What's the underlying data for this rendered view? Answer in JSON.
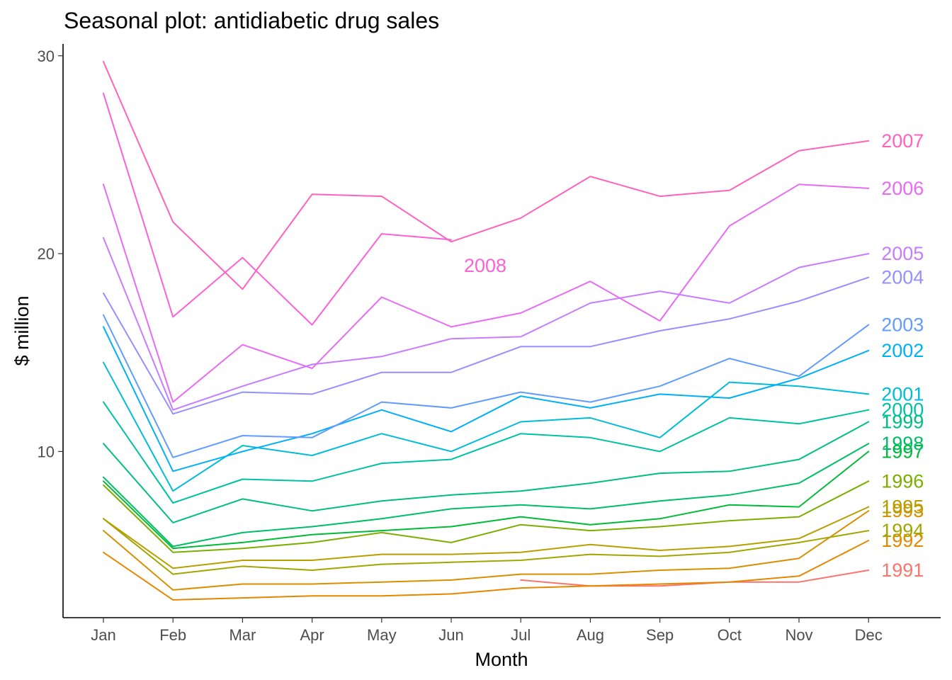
{
  "chart_data": {
    "type": "line",
    "title": "Seasonal plot: antidiabetic drug sales",
    "xlabel": "Month",
    "ylabel": "$ million",
    "categories": [
      "Jan",
      "Feb",
      "Mar",
      "Apr",
      "May",
      "Jun",
      "Jul",
      "Aug",
      "Sep",
      "Oct",
      "Nov",
      "Dec"
    ],
    "ylim": [
      1.6,
      30.6
    ],
    "yticks": [
      10,
      20,
      30
    ],
    "grid": false,
    "legend": "none",
    "series": [
      {
        "name": "1991",
        "color": "#F8766D",
        "values": [
          null,
          null,
          null,
          null,
          null,
          null,
          3.5,
          3.2,
          3.2,
          3.4,
          3.4,
          4.0
        ]
      },
      {
        "name": "1992",
        "color": "#E58700",
        "values": [
          4.9,
          2.5,
          2.6,
          2.7,
          2.7,
          2.8,
          3.1,
          3.2,
          3.3,
          3.4,
          3.7,
          5.5
        ]
      },
      {
        "name": "1993",
        "color": "#D89000",
        "values": [
          6.0,
          3.0,
          3.3,
          3.3,
          3.4,
          3.5,
          3.8,
          3.8,
          4.0,
          4.1,
          4.6,
          7.0
        ]
      },
      {
        "name": "1994",
        "color": "#A3A500",
        "values": [
          6.6,
          3.8,
          4.2,
          4.0,
          4.3,
          4.4,
          4.5,
          4.8,
          4.7,
          4.9,
          5.4,
          6.0
        ]
      },
      {
        "name": "1995",
        "color": "#B79F00",
        "values": [
          6.6,
          4.1,
          4.5,
          4.5,
          4.8,
          4.8,
          4.9,
          5.3,
          5.0,
          5.2,
          5.6,
          7.2
        ]
      },
      {
        "name": "1996",
        "color": "#7CAE00",
        "values": [
          8.3,
          4.9,
          5.1,
          5.4,
          5.9,
          5.4,
          6.3,
          6.0,
          6.2,
          6.5,
          6.7,
          8.5
        ]
      },
      {
        "name": "1997",
        "color": "#00BA38",
        "values": [
          8.5,
          5.1,
          5.4,
          5.8,
          6.0,
          6.2,
          6.7,
          6.3,
          6.6,
          7.3,
          7.2,
          10.0
        ]
      },
      {
        "name": "1998",
        "color": "#00BE67",
        "values": [
          8.7,
          5.2,
          5.9,
          6.2,
          6.6,
          7.1,
          7.3,
          7.1,
          7.5,
          7.8,
          8.4,
          10.4
        ]
      },
      {
        "name": "1999",
        "color": "#00BF7D",
        "values": [
          10.4,
          6.4,
          7.6,
          7.0,
          7.5,
          7.8,
          8.0,
          8.4,
          8.9,
          9.0,
          9.6,
          11.5
        ]
      },
      {
        "name": "2000",
        "color": "#00C1A3",
        "values": [
          12.5,
          7.4,
          8.6,
          8.5,
          9.4,
          9.6,
          10.9,
          10.7,
          10.0,
          11.7,
          11.4,
          12.1
        ]
      },
      {
        "name": "2001",
        "color": "#00BCD8",
        "values": [
          14.5,
          8.0,
          10.3,
          9.8,
          10.9,
          10.0,
          11.5,
          11.7,
          10.7,
          13.5,
          13.3,
          12.9
        ]
      },
      {
        "name": "2002",
        "color": "#00B0F6",
        "values": [
          16.3,
          9.0,
          10.0,
          10.9,
          12.1,
          11.0,
          12.8,
          12.2,
          12.9,
          12.7,
          13.7,
          15.1
        ]
      },
      {
        "name": "2003",
        "color": "#619CFF",
        "values": [
          16.9,
          9.7,
          10.8,
          10.7,
          12.5,
          12.2,
          13.0,
          12.5,
          13.3,
          14.7,
          13.8,
          16.4
        ]
      },
      {
        "name": "2004",
        "color": "#9590FF",
        "values": [
          18.0,
          11.9,
          13.0,
          12.9,
          14.0,
          14.0,
          15.3,
          15.3,
          16.1,
          16.7,
          17.6,
          18.8
        ]
      },
      {
        "name": "2005",
        "color": "#C77CFF",
        "values": [
          20.8,
          12.1,
          13.3,
          14.4,
          14.8,
          15.7,
          15.8,
          17.5,
          18.1,
          17.5,
          19.3,
          20.0
        ]
      },
      {
        "name": "2006",
        "color": "#E76BF3",
        "values": [
          23.5,
          12.5,
          15.4,
          14.2,
          17.8,
          16.3,
          17.0,
          18.6,
          16.6,
          21.4,
          23.5,
          23.3
        ]
      },
      {
        "name": "2007",
        "color": "#FF62BC",
        "values": [
          29.7,
          21.6,
          18.2,
          23.0,
          22.9,
          20.6,
          21.8,
          23.9,
          22.9,
          23.2,
          25.2,
          25.7
        ]
      },
      {
        "name": "2008",
        "color": "#FC61D5",
        "values": [
          28.1,
          16.8,
          19.8,
          16.4,
          21.0,
          20.7,
          null,
          null,
          null,
          null,
          null,
          null
        ]
      }
    ],
    "annotations": [
      {
        "text": "1991",
        "series": "1991",
        "month": "Dec",
        "y": 4.0
      },
      {
        "text": "1992",
        "series": "1992",
        "month": "Dec",
        "y": 5.5
      },
      {
        "text": "1993",
        "series": "1993",
        "month": "Dec",
        "y": 7.0
      },
      {
        "text": "1994",
        "series": "1994",
        "month": "Dec",
        "y": 6.0
      },
      {
        "text": "1995",
        "series": "1995",
        "month": "Dec",
        "y": 7.2
      },
      {
        "text": "1996",
        "series": "1996",
        "month": "Dec",
        "y": 8.5
      },
      {
        "text": "1997",
        "series": "1997",
        "month": "Dec",
        "y": 10.0
      },
      {
        "text": "1998",
        "series": "1998",
        "month": "Dec",
        "y": 10.4
      },
      {
        "text": "1999",
        "series": "1999",
        "month": "Dec",
        "y": 11.5
      },
      {
        "text": "2000",
        "series": "2000",
        "month": "Dec",
        "y": 12.1
      },
      {
        "text": "2001",
        "series": "2001",
        "month": "Dec",
        "y": 12.9
      },
      {
        "text": "2002",
        "series": "2002",
        "month": "Dec",
        "y": 15.1
      },
      {
        "text": "2003",
        "series": "2003",
        "month": "Dec",
        "y": 16.4
      },
      {
        "text": "2004",
        "series": "2004",
        "month": "Dec",
        "y": 18.8
      },
      {
        "text": "2005",
        "series": "2005",
        "month": "Dec",
        "y": 20.0
      },
      {
        "text": "2006",
        "series": "2006",
        "month": "Dec",
        "y": 23.3
      },
      {
        "text": "2007",
        "series": "2007",
        "month": "Dec",
        "y": 25.7
      },
      {
        "text": "2008",
        "series": "2008",
        "month": "Jun",
        "y": 19.4
      }
    ]
  }
}
